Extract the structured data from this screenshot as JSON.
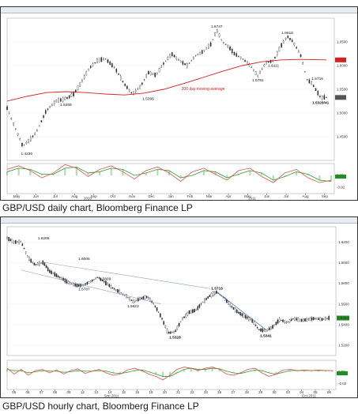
{
  "captions": {
    "daily": "GBP/USD daily chart, Bloomberg Finance LP",
    "hourly": "GBP/USD hourly chart, Bloomberg Finance LP"
  },
  "colors": {
    "price": "#222222",
    "ma": "#d42020",
    "osc_fast": "#e05050",
    "osc_slow": "#2c9c2c",
    "current_tag": "#1f8f1f",
    "trend": "#8aa0c8"
  },
  "chart_data": [
    {
      "type": "line",
      "subtype": "candlestick",
      "title": "",
      "xlabel": "",
      "ylabel": "",
      "x_ticks": [
        "May",
        "Jun",
        "Jul",
        "Aug",
        "Sep",
        "Oct",
        "Nov",
        "Dec",
        "Jan",
        "Feb",
        "Mar",
        "Apr",
        "May",
        "Jun",
        "Jul",
        "Aug",
        "Sep"
      ],
      "year_labels": [
        "2010",
        "2011"
      ],
      "y_ticks": [
        "1.6500",
        "1.6000",
        "1.5500",
        "1.5000",
        "1.4500"
      ],
      "ylim": [
        1.4,
        1.7
      ],
      "series": [
        {
          "x": [
            0,
            0.4,
            0.8,
            1.2,
            1.5,
            2.0,
            2.5,
            3.0,
            3.4,
            3.8,
            4.2,
            4.6,
            5.0,
            5.5,
            6.0,
            6.4,
            6.8,
            7.2,
            7.6,
            8.0,
            8.4,
            8.8,
            9.2,
            9.6,
            10.0,
            10.4,
            10.7,
            11.0,
            11.3,
            11.6,
            12.0,
            12.4,
            12.8,
            13.2,
            13.6,
            14.0,
            14.3,
            14.6,
            15.0,
            15.3,
            15.6,
            16.0,
            16.3
          ],
          "values": [
            1.51,
            1.47,
            1.43,
            1.445,
            1.46,
            1.505,
            1.525,
            1.53,
            1.54,
            1.565,
            1.595,
            1.61,
            1.615,
            1.595,
            1.56,
            1.54,
            1.555,
            1.585,
            1.58,
            1.605,
            1.625,
            1.61,
            1.6,
            1.62,
            1.63,
            1.645,
            1.6747,
            1.65,
            1.64,
            1.625,
            1.615,
            1.6,
            1.5781,
            1.605,
            1.6111,
            1.6428,
            1.6618,
            1.65,
            1.62,
            1.5716,
            1.56,
            1.5328,
            1.5328
          ]
        },
        {
          "name": "200 day moving average",
          "x": [
            0,
            1,
            2,
            3,
            4,
            5,
            6,
            7,
            8,
            9,
            10,
            11,
            12,
            13,
            14,
            15,
            16.3
          ],
          "values": [
            1.525,
            1.535,
            1.543,
            1.545,
            1.543,
            1.54,
            1.538,
            1.542,
            1.55,
            1.562,
            1.575,
            1.588,
            1.6,
            1.608,
            1.612,
            1.613,
            1.612
          ]
        }
      ],
      "annotations": [
        "1.6747",
        "1.6618",
        "1.6111",
        "1.5781",
        "1.5716",
        "1.5328/41",
        "1.5395",
        "1.5269",
        "1.4230"
      ],
      "ma_label": "200 day moving average",
      "oscillator": {
        "y_ticks": [
          "0.00",
          "-0.02"
        ],
        "fast": [
          0.01,
          0.016,
          0.008,
          -0.004,
          0.004,
          0.018,
          0.012,
          -0.002,
          0.01,
          0.016,
          0.006,
          -0.006,
          0.008,
          0.014,
          0.004,
          -0.01,
          0.006,
          0.012,
          0.002,
          -0.008,
          0.008,
          0.012,
          -0.002,
          -0.012,
          0.004,
          0.01,
          -0.004,
          -0.012,
          -0.008
        ],
        "slow": [
          0.006,
          0.012,
          0.01,
          0.002,
          0.002,
          0.012,
          0.014,
          0.004,
          0.006,
          0.012,
          0.01,
          0.0,
          0.004,
          0.01,
          0.008,
          -0.004,
          0.0,
          0.008,
          0.006,
          -0.004,
          0.002,
          0.008,
          0.004,
          -0.008,
          -0.002,
          0.006,
          0.002,
          -0.008,
          -0.01
        ]
      }
    },
    {
      "type": "line",
      "subtype": "candlestick",
      "title": "",
      "xlabel": "",
      "ylabel": "",
      "x_ticks": [
        "05",
        "06",
        "07",
        "08",
        "09",
        "12",
        "13",
        "14",
        "15",
        "16",
        "19",
        "20",
        "21",
        "22",
        "23",
        "26",
        "27",
        "28",
        "29",
        "30",
        "03",
        "04",
        "05",
        "06"
      ],
      "month_labels": [
        "Sep 2011",
        "Oct 2011"
      ],
      "y_ticks": [
        "1.6200",
        "1.6000",
        "1.5800",
        "1.5600",
        "1.5400",
        "1.5200"
      ],
      "ylim": [
        1.51,
        1.635
      ],
      "series": [
        {
          "x": [
            0,
            0.5,
            1.0,
            1.5,
            2.0,
            2.6,
            3.0,
            3.5,
            4.0,
            4.5,
            5.0,
            5.5,
            6.0,
            6.5,
            7.0,
            7.5,
            8.0,
            8.5,
            9.0,
            9.5,
            10.0,
            10.5,
            11.0,
            11.5,
            12.0,
            12.5,
            13.0,
            13.5,
            14.0,
            14.5,
            15.0,
            15.5,
            16.0,
            16.5,
            17.0,
            17.5,
            18.0,
            18.5,
            19.0,
            19.5,
            20.0,
            20.5,
            21.0,
            21.5,
            22.0,
            22.5,
            23.0
          ],
          "values": [
            1.624,
            1.62,
            1.6205,
            1.605,
            1.598,
            1.6005,
            1.592,
            1.588,
            1.584,
            1.58,
            1.578,
            1.5787,
            1.582,
            1.586,
            1.5809,
            1.576,
            1.572,
            1.568,
            1.5623,
            1.565,
            1.567,
            1.56,
            1.548,
            1.532,
            1.5328,
            1.545,
            1.552,
            1.554,
            1.562,
            1.568,
            1.5716,
            1.566,
            1.558,
            1.552,
            1.548,
            1.544,
            1.535,
            1.5341,
            1.538,
            1.545,
            1.542,
            1.546,
            1.544,
            1.545,
            1.546,
            1.545,
            1.5464
          ]
        }
      ],
      "annotations": [
        "1.6205",
        "1.6005",
        "1.5809",
        "1.5787",
        "1.5623",
        "1.5328",
        "1.5716",
        "1.5341"
      ],
      "current_value_tag": "1.5464",
      "oscillator": {
        "y_ticks": [
          "0.00",
          "-0.02"
        ],
        "fast": [
          0.006,
          -0.004,
          0.004,
          -0.006,
          0.002,
          0.004,
          -0.002,
          0.003,
          -0.004,
          0.002,
          0.005,
          -0.003,
          0.001,
          0.004,
          -0.002,
          -0.006,
          -0.004,
          0.003,
          0.006,
          0.002,
          -0.004,
          -0.008,
          -0.014,
          -0.006,
          0.004,
          0.008,
          0.006,
          0.002,
          0.006,
          0.008,
          0.004,
          -0.004,
          -0.006,
          -0.002,
          0.004,
          0.006,
          -0.002,
          -0.008,
          -0.004,
          0.003,
          0.004,
          0.002,
          0.003,
          0.002,
          0.003,
          0.002,
          0.002
        ],
        "slow": [
          0.004,
          0.002,
          0.002,
          -0.002,
          0.0,
          0.002,
          0.001,
          0.001,
          -0.001,
          0.0,
          0.002,
          0.001,
          0.001,
          0.002,
          0.001,
          -0.002,
          -0.003,
          -0.001,
          0.002,
          0.003,
          0.0,
          -0.004,
          -0.008,
          -0.008,
          -0.002,
          0.004,
          0.006,
          0.004,
          0.004,
          0.006,
          0.005,
          0.001,
          -0.002,
          -0.003,
          0.0,
          0.003,
          0.002,
          -0.002,
          -0.004,
          -0.001,
          0.002,
          0.002,
          0.002,
          0.002,
          0.002,
          0.002,
          0.002
        ]
      }
    }
  ]
}
